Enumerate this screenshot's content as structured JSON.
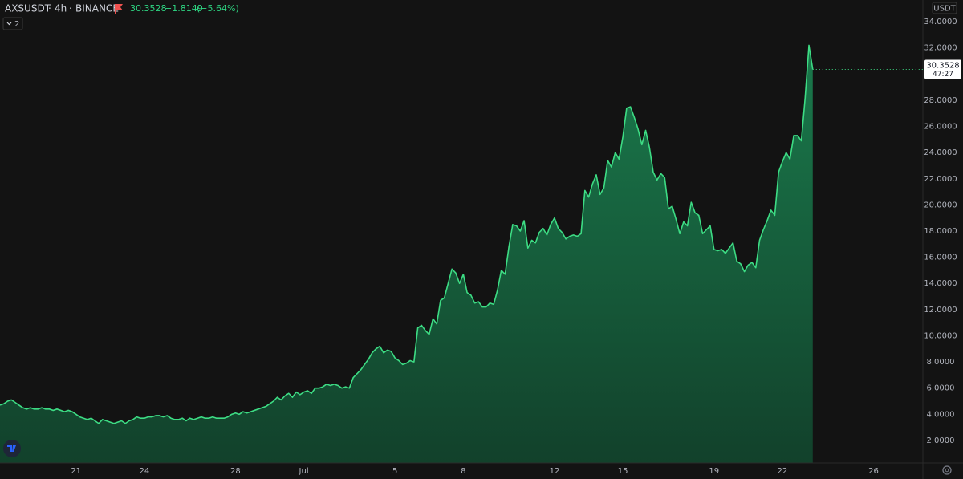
{
  "chart_data": {
    "type": "area",
    "title": "AXSUSDT",
    "interval": "4h",
    "exchange": "BINANCE",
    "price": "30.3528",
    "change": "−1.8149",
    "change_percent": "(−5.64%)",
    "indicator_count": "2",
    "currency": "USDT",
    "price_label": "30.3528",
    "countdown": "47:27",
    "line_color": "#3ddc84",
    "fill_top": "#1a7a4c",
    "fill_bottom": "#12412b",
    "categories": [
      null,
      null,
      null,
      null,
      null,
      null,
      null,
      null,
      null,
      null,
      null,
      null,
      null,
      null,
      null,
      null,
      null,
      null,
      null,
      null,
      "21",
      null,
      null,
      null,
      null,
      null,
      null,
      null,
      null,
      null,
      null,
      null,
      null,
      null,
      null,
      null,
      null,
      null,
      "24",
      null,
      null,
      null,
      null,
      null,
      null,
      null,
      null,
      null,
      null,
      null,
      null,
      null,
      null,
      null,
      null,
      null,
      null,
      null,
      null,
      null,
      null,
      null,
      "28",
      null,
      null,
      null,
      null,
      null,
      null,
      null,
      null,
      null,
      null,
      null,
      null,
      null,
      null,
      null,
      null,
      null,
      "Jul",
      null,
      null,
      null,
      null,
      null,
      null,
      null,
      null,
      null,
      null,
      null,
      null,
      null,
      null,
      null,
      null,
      null,
      null,
      null,
      null,
      null,
      null,
      null,
      "5",
      null,
      null,
      null,
      null,
      null,
      null,
      null,
      null,
      null,
      null,
      null,
      null,
      null,
      null,
      null,
      null,
      null,
      "8",
      null,
      null,
      null,
      null,
      null,
      null,
      null,
      null,
      null,
      null,
      null,
      null,
      null,
      null,
      null,
      null,
      null,
      null,
      null,
      null,
      null,
      null,
      null,
      "12",
      null,
      null,
      null,
      null,
      null,
      null,
      null,
      null,
      null,
      null,
      null,
      null,
      null,
      null,
      null,
      null,
      null,
      "15",
      null,
      null,
      null,
      null,
      null,
      null,
      null,
      null,
      null,
      null,
      null,
      null,
      null,
      null,
      null,
      null,
      null,
      null,
      null,
      null,
      null,
      null,
      null,
      "19",
      null,
      null,
      null,
      null,
      null,
      null,
      null,
      null,
      null,
      null,
      null,
      null,
      null,
      null,
      null,
      null,
      null,
      "22",
      null,
      null,
      null,
      null,
      null,
      null,
      null,
      null,
      null,
      null,
      null,
      null,
      null,
      null,
      null,
      null,
      null,
      null,
      null,
      null,
      null,
      null,
      null,
      "26",
      null,
      null,
      null,
      null,
      null,
      null,
      null,
      null,
      null,
      null,
      null,
      null
    ],
    "values": [
      4.7,
      4.8,
      5.0,
      5.1,
      4.9,
      4.7,
      4.5,
      4.4,
      4.5,
      4.4,
      4.4,
      4.5,
      4.4,
      4.4,
      4.3,
      4.4,
      4.3,
      4.2,
      4.3,
      4.2,
      4.0,
      3.8,
      3.7,
      3.6,
      3.7,
      3.5,
      3.3,
      3.6,
      3.5,
      3.4,
      3.3,
      3.4,
      3.5,
      3.3,
      3.5,
      3.6,
      3.8,
      3.7,
      3.7,
      3.8,
      3.8,
      3.9,
      3.9,
      3.8,
      3.9,
      3.7,
      3.6,
      3.6,
      3.7,
      3.5,
      3.7,
      3.6,
      3.7,
      3.8,
      3.7,
      3.7,
      3.8,
      3.7,
      3.7,
      3.7,
      3.8,
      4.0,
      4.1,
      4.0,
      4.2,
      4.1,
      4.2,
      4.3,
      4.4,
      4.5,
      4.6,
      4.8,
      5.0,
      5.3,
      5.1,
      5.4,
      5.6,
      5.3,
      5.7,
      5.5,
      5.7,
      5.8,
      5.6,
      6.0,
      6.0,
      6.1,
      6.3,
      6.2,
      6.3,
      6.2,
      6.0,
      6.1,
      6.0,
      6.8,
      7.1,
      7.4,
      7.8,
      8.2,
      8.7,
      9.0,
      9.2,
      8.7,
      8.9,
      8.8,
      8.3,
      8.1,
      7.8,
      7.9,
      8.1,
      8.0,
      10.6,
      10.8,
      10.4,
      10.1,
      11.3,
      10.9,
      12.7,
      12.9,
      14.0,
      15.1,
      14.8,
      14.0,
      14.7,
      13.3,
      13.1,
      12.5,
      12.6,
      12.2,
      12.2,
      12.5,
      12.4,
      13.5,
      15.0,
      14.7,
      16.8,
      18.5,
      18.4,
      18.0,
      18.8,
      16.7,
      17.3,
      17.1,
      17.9,
      18.2,
      17.7,
      18.5,
      19.0,
      18.2,
      17.9,
      17.4,
      17.6,
      17.7,
      17.6,
      17.8,
      21.1,
      20.6,
      21.6,
      22.3,
      20.8,
      21.3,
      23.4,
      22.9,
      24.0,
      23.5,
      25.2,
      27.4,
      27.5,
      26.7,
      25.8,
      24.6,
      25.7,
      24.4,
      22.5,
      21.9,
      22.4,
      22.1,
      19.7,
      19.9,
      18.9,
      17.8,
      18.7,
      18.4,
      20.2,
      19.4,
      19.2,
      17.8,
      18.1,
      18.4,
      16.6,
      16.5,
      16.6,
      16.3,
      16.7,
      17.1,
      15.7,
      15.5,
      14.9,
      15.4,
      15.6,
      15.2,
      17.3,
      18.1,
      18.8,
      19.6,
      19.2,
      22.5,
      23.3,
      24.0,
      23.5,
      25.3,
      25.3,
      24.9,
      28.2,
      32.2,
      30.3528,
      null,
      null,
      null,
      null,
      null,
      null,
      null,
      null,
      null,
      null,
      null,
      null,
      null,
      null,
      null,
      null,
      null,
      null,
      null,
      null,
      null,
      null,
      null,
      null,
      null,
      null,
      null,
      null
    ],
    "ylim": [
      0.28,
      35.66
    ],
    "yticks": [
      {
        "value": 2,
        "label": "2.0000"
      },
      {
        "value": 4,
        "label": "4.0000"
      },
      {
        "value": 6,
        "label": "6.0000"
      },
      {
        "value": 8,
        "label": "8.0000"
      },
      {
        "value": 10,
        "label": "10.0000"
      },
      {
        "value": 12,
        "label": "12.0000"
      },
      {
        "value": 14,
        "label": "14.0000"
      },
      {
        "value": 16,
        "label": "16.0000"
      },
      {
        "value": 18,
        "label": "18.0000"
      },
      {
        "value": 20,
        "label": "20.0000"
      },
      {
        "value": 22,
        "label": "22.0000"
      },
      {
        "value": 24,
        "label": "24.0000"
      },
      {
        "value": 26,
        "label": "26.0000"
      },
      {
        "value": 28,
        "label": "28.0000"
      },
      {
        "value": 30,
        "label": "30.0000"
      },
      {
        "value": 32,
        "label": "32.0000"
      },
      {
        "value": 34,
        "label": "34.0000"
      }
    ]
  }
}
